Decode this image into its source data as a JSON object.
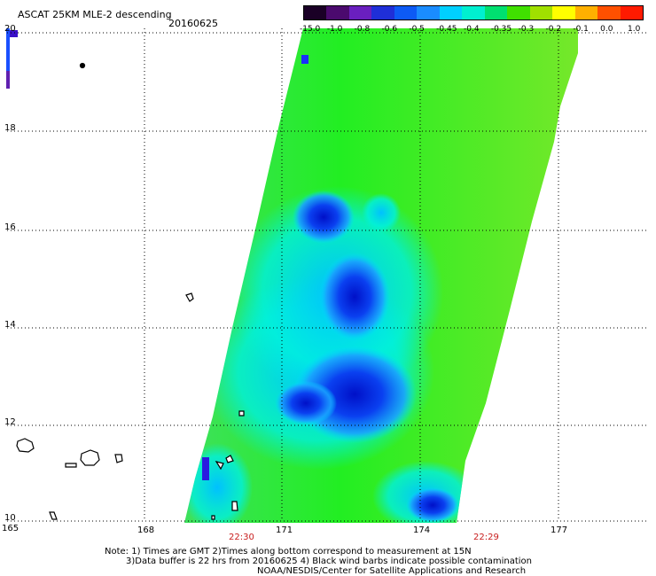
{
  "header": {
    "title": "ASCAT 25KM MLE-2 descending",
    "date": "20160625"
  },
  "colorbar": {
    "labels": [
      "-15.0",
      "-1.0",
      "-0.8",
      "-0.6",
      "-0.5",
      "-0.45",
      "-0.4",
      "-0.35",
      "-0.3",
      "-0.2",
      "-0.1",
      "0.0",
      "1.0"
    ],
    "colors": [
      "#1a0026",
      "#4b0a6e",
      "#6a1fbf",
      "#1f2fd8",
      "#0d5af5",
      "#1a8cff",
      "#00d0ff",
      "#00f0d0",
      "#00e070",
      "#40e000",
      "#a0e000",
      "#ffff00",
      "#ffb000",
      "#ff5000",
      "#ff1a00"
    ]
  },
  "axes": {
    "lat_labels": [
      "20",
      "18",
      "16",
      "14",
      "12",
      "10"
    ],
    "lon_labels": [
      "165",
      "168",
      "171",
      "174",
      "177"
    ],
    "time_labels": [
      "22:30",
      "22:29"
    ]
  },
  "footer": {
    "note1": "Note: 1) Times are GMT 2)Times along bottom correspond to measurement at 15N",
    "note2": "3)Data buffer is 22 hrs from 20160625 4) Black wind barbs indicate possible contamination",
    "credit": "NOAA/NESDIS/Center for Satellite Applications and Research"
  }
}
